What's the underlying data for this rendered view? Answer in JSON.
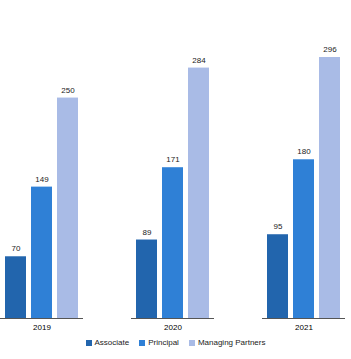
{
  "chart_data": {
    "type": "bar",
    "categories": [
      "2019",
      "2020",
      "2021"
    ],
    "series": [
      {
        "name": "Associate",
        "color": "#2265ad",
        "values": [
          70,
          89,
          95
        ]
      },
      {
        "name": "Principal",
        "color": "#2f80d6",
        "values": [
          149,
          171,
          180
        ]
      },
      {
        "name": "Managing Partners",
        "color": "#a9bbe6",
        "values": [
          250,
          284,
          296
        ]
      }
    ],
    "data_labels": true,
    "tick_labels": "x",
    "legend": "bottom"
  }
}
